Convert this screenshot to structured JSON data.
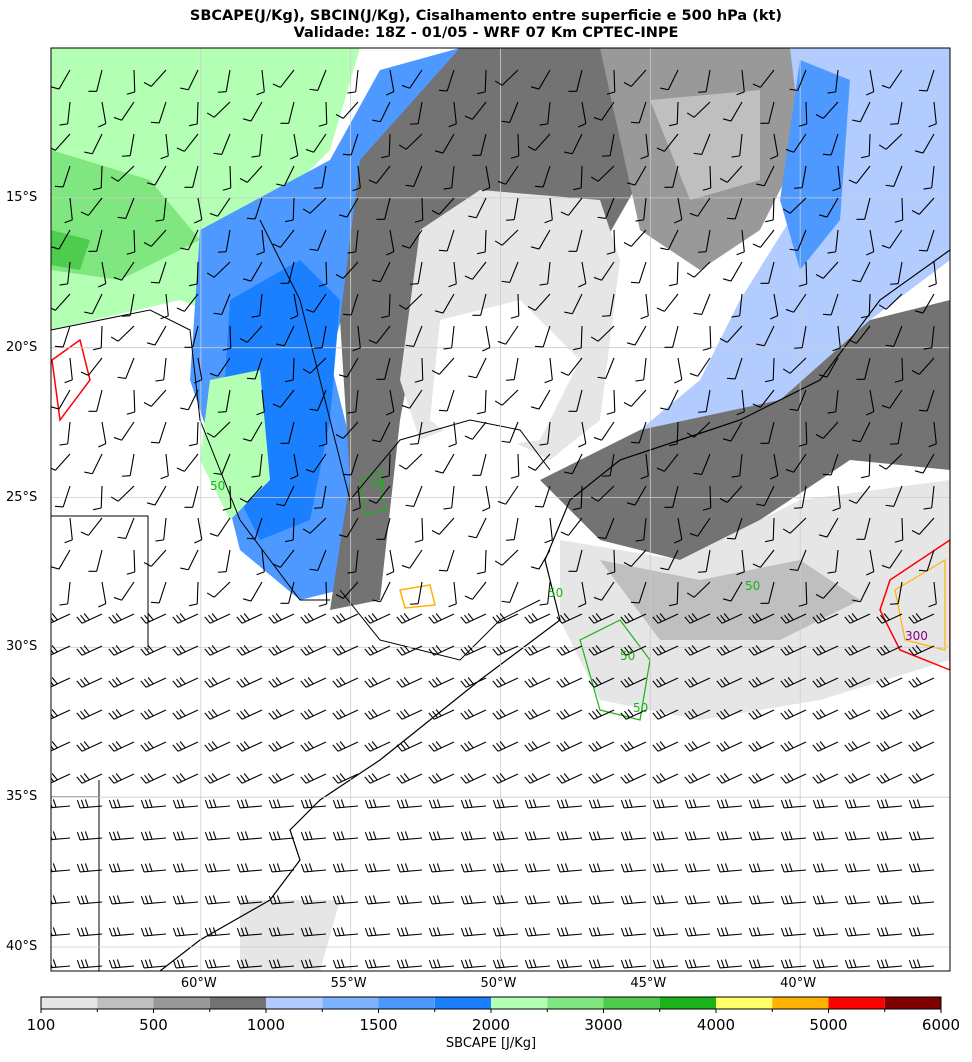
{
  "title_line1": "SBCAPE(J/Kg), SBCIN(J/Kg), Cisalhamento entre superficie e 500 hPa (kt)",
  "title_line2": "Validade: 18Z - 01/05 - WRF 07 Km CPTEC-INPE",
  "map": {
    "lon_range": [
      -65,
      -35
    ],
    "lat_range": [
      -40.8,
      -10
    ],
    "lat_labels": [
      {
        "lat": -15,
        "text": "15°S"
      },
      {
        "lat": -20,
        "text": "20°S"
      },
      {
        "lat": -25,
        "text": "25°S"
      },
      {
        "lat": -30,
        "text": "30°S"
      },
      {
        "lat": -35,
        "text": "35°S"
      },
      {
        "lat": -40,
        "text": "40°S"
      }
    ],
    "lon_labels": [
      {
        "lon": -60,
        "text": "60°W"
      },
      {
        "lon": -55,
        "text": "55°W"
      },
      {
        "lon": -50,
        "text": "50°W"
      },
      {
        "lon": -45,
        "text": "45°W"
      },
      {
        "lon": -40,
        "text": "40°W"
      }
    ],
    "contour_labels": [
      "50",
      "50",
      "50",
      "50",
      "50",
      "50",
      "300"
    ]
  },
  "colorbar": {
    "label": "SBCAPE [J/Kg]",
    "colors": [
      "#e6e6e6",
      "#bfbfbf",
      "#999999",
      "#737373",
      "#b3ccff",
      "#80b3ff",
      "#4d99ff",
      "#1a80ff",
      "#b3ffb3",
      "#80e680",
      "#4dcc4d",
      "#1ab31a",
      "#ffff66",
      "#ffb300",
      "#ff0000",
      "#800000"
    ],
    "tick_labels": [
      "100",
      "500",
      "1000",
      "1500",
      "2000",
      "3000",
      "4000",
      "5000",
      "6000"
    ]
  }
}
